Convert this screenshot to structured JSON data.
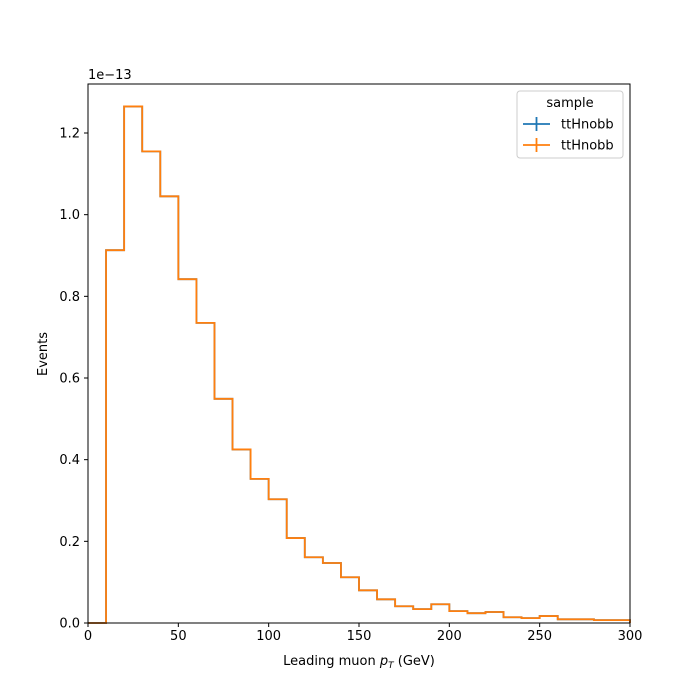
{
  "chart_data": {
    "type": "histogram-step",
    "xlabel_main": "Leading muon ",
    "xlabel_symbol": "p",
    "xlabel_sub": "T",
    "xlabel_unit": " (GeV)",
    "ylabel": "Events",
    "y_offset_label": "1e−13",
    "xlim": [
      0,
      300
    ],
    "ylim": [
      0,
      1.32
    ],
    "y_scale_exponent": -13,
    "xticks": [
      0,
      50,
      100,
      150,
      200,
      250,
      300
    ],
    "yticks": [
      0.0,
      0.2,
      0.4,
      0.6,
      0.8,
      1.0,
      1.2
    ],
    "bin_edges": [
      0,
      10,
      20,
      30,
      40,
      50,
      60,
      70,
      80,
      90,
      100,
      110,
      120,
      130,
      140,
      150,
      160,
      170,
      180,
      190,
      200,
      210,
      220,
      230,
      240,
      250,
      260,
      270,
      280,
      290,
      300
    ],
    "series": [
      {
        "name": "ttHnobb",
        "color": "#1f77b4",
        "values": [
          0,
          0.913,
          1.265,
          1.155,
          1.045,
          0.842,
          0.735,
          0.549,
          0.425,
          0.353,
          0.303,
          0.208,
          0.161,
          0.147,
          0.112,
          0.08,
          0.058,
          0.041,
          0.034,
          0.046,
          0.029,
          0.024,
          0.027,
          0.014,
          0.012,
          0.017,
          0.009,
          0.009,
          0.007,
          0.007
        ]
      },
      {
        "name": "ttHnobb",
        "color": "#ff7f0e",
        "values": [
          0,
          0.913,
          1.265,
          1.155,
          1.045,
          0.842,
          0.735,
          0.549,
          0.425,
          0.353,
          0.303,
          0.208,
          0.161,
          0.147,
          0.112,
          0.08,
          0.058,
          0.041,
          0.034,
          0.046,
          0.029,
          0.024,
          0.027,
          0.014,
          0.012,
          0.017,
          0.009,
          0.009,
          0.007,
          0.007
        ]
      }
    ],
    "legend": {
      "title": "sample",
      "placement": "top-right"
    },
    "grid": false
  }
}
